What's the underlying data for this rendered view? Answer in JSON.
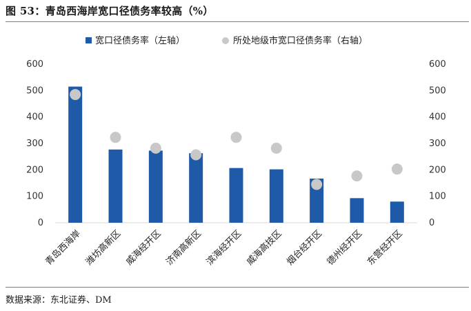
{
  "figure": {
    "title": "图 53：青岛西海岸宽口径债务率较高（%）",
    "source": "数据来源：东北证券、DM"
  },
  "colors": {
    "bar": "#1f5aa8",
    "dot": "#c8c8c8",
    "rule": "#7a7a7a"
  },
  "chart_data": {
    "type": "bar",
    "title": "",
    "categories": [
      "青岛西海岸",
      "潍坊高新区",
      "威海经开区",
      "济南高新区",
      "滨海经开区",
      "威海高技区",
      "烟台经开区",
      "德州经开区",
      "东营经开区"
    ],
    "series": [
      {
        "name": "宽口径债务率（左轴）",
        "type": "bar",
        "axis": "left",
        "values": [
          515,
          277,
          273,
          263,
          207,
          202,
          167,
          93,
          80
        ]
      },
      {
        "name": "所处地级市宽口径债务率（右轴）",
        "type": "scatter",
        "axis": "right",
        "values": [
          485,
          323,
          282,
          257,
          323,
          282,
          145,
          177,
          203
        ]
      }
    ],
    "yleft": {
      "ylim": [
        0,
        600
      ],
      "ticks": [
        "0",
        "100",
        "200",
        "300",
        "400",
        "500",
        "600"
      ]
    },
    "yright": {
      "ylim": [
        0,
        600
      ],
      "ticks": [
        "0",
        "100",
        "200",
        "300",
        "400",
        "500",
        "600"
      ]
    },
    "legend_position": "top-center",
    "grid": false
  }
}
